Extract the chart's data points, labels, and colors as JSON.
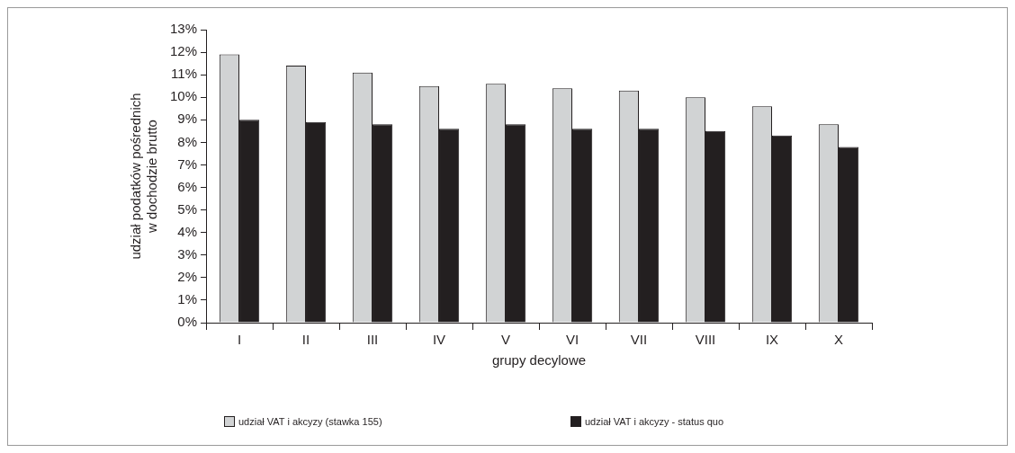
{
  "chart_data": {
    "type": "bar",
    "xlabel": "grupy decylowe",
    "ylabel": "udział podatków pośrednich w dochodzie brutto",
    "categories": [
      "I",
      "II",
      "III",
      "IV",
      "V",
      "VI",
      "VII",
      "VIII",
      "IX",
      "X"
    ],
    "series": [
      {
        "name": "udział VAT i akcyzy (stawka 155)",
        "color": "#d1d3d4",
        "values": [
          11.9,
          11.4,
          11.1,
          10.5,
          10.6,
          10.4,
          10.3,
          10.0,
          9.6,
          8.8
        ]
      },
      {
        "name": "udział VAT i akcyzy - status quo",
        "color": "#231f20",
        "values": [
          9.0,
          8.9,
          8.8,
          8.6,
          8.8,
          8.6,
          8.6,
          8.5,
          8.3,
          7.8
        ]
      }
    ],
    "ylim": [
      0,
      13
    ],
    "yticks": [
      {
        "value": 0,
        "label": "0%"
      },
      {
        "value": 1,
        "label": "1%"
      },
      {
        "value": 2,
        "label": "2%"
      },
      {
        "value": 3,
        "label": "3%"
      },
      {
        "value": 4,
        "label": "4%"
      },
      {
        "value": 5,
        "label": "5%"
      },
      {
        "value": 6,
        "label": "6%"
      },
      {
        "value": 7,
        "label": "7%"
      },
      {
        "value": 8,
        "label": "8%"
      },
      {
        "value": 9,
        "label": "9%"
      },
      {
        "value": 10,
        "label": "10%"
      },
      {
        "value": 11,
        "label": "11%"
      },
      {
        "value": 12,
        "label": "12%"
      },
      {
        "value": 13,
        "label": "13%"
      }
    ],
    "grid": false,
    "legend": "bottom left"
  }
}
